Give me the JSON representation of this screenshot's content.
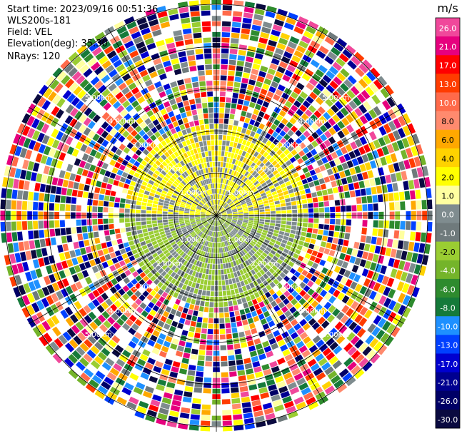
{
  "header": {
    "start_time": "Start time: 2023/09/16 00:51:36",
    "instrument": "WLS200s-181",
    "field": "Field: VEL",
    "elevation": "Elevation(deg): 35.30",
    "nrays": "NRays: 120"
  },
  "colorbar": {
    "unit": "m/s",
    "ticks": [
      "26.0",
      "21.0",
      "17.0",
      "13.0",
      "10.0",
      "8.0",
      "6.0",
      "4.0",
      "2.0",
      "1.0",
      "0.0",
      "-1.0",
      "-2.0",
      "-4.0",
      "-6.0",
      "-8.0",
      "-10.0",
      "-13.0",
      "-17.0",
      "-21.0",
      "-26.0",
      "-30.0"
    ],
    "colors": [
      "#f0489b",
      "#e6007e",
      "#ff0000",
      "#ff3c00",
      "#ff6a4a",
      "#ff8a6e",
      "#ffa800",
      "#ffd200",
      "#ffff00",
      "#ffffa0",
      "#7f8c8f",
      "#6f7a7c",
      "#9acd32",
      "#74b42a",
      "#2e8b2e",
      "#157a3a",
      "#1e90ff",
      "#0040ff",
      "#0000d0",
      "#000090",
      "#000066",
      "#0a0a40"
    ]
  },
  "chart_data": {
    "type": "heatmap",
    "projection": "polar PPI",
    "field": "VEL",
    "unit": "m/s",
    "nrays": 120,
    "vmin": -30,
    "vmax": 26,
    "range_ring_labels": [
      "1.00km",
      "1.00km",
      "1.00km",
      "1.00km",
      "2.00km",
      "2.00km",
      "2.00km",
      "2.00km",
      "3.00km",
      "3.00km",
      "3.00km",
      "3.00km",
      "4.00km",
      "4.00km",
      "4.00km",
      "4.00km",
      "5.00km",
      "5.00km",
      "5.00km",
      "5.00km"
    ],
    "grid": true
  }
}
